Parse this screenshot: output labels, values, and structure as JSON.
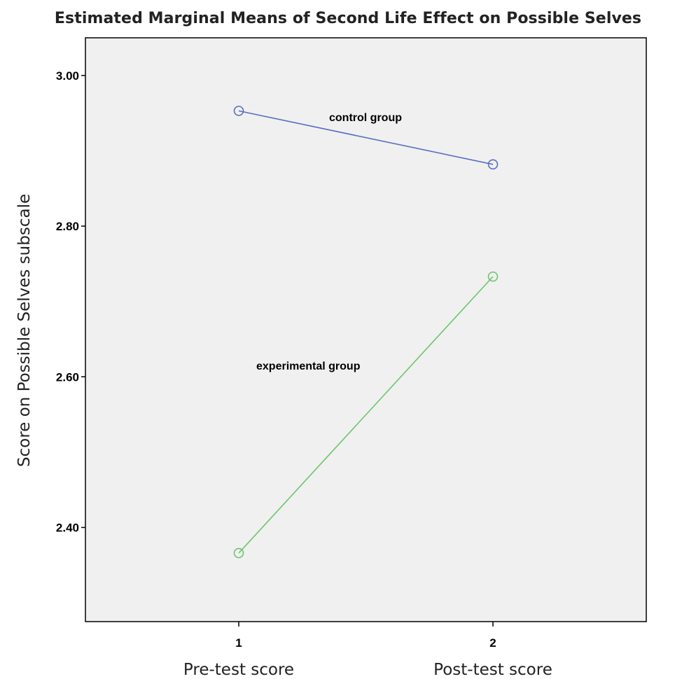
{
  "chart_data": {
    "type": "line",
    "title": "Estimated Marginal Means of Second Life Effect on Possible Selves",
    "xlabel": "",
    "ylabel": "Score on Possible Selves subscale",
    "categories": [
      "1",
      "2"
    ],
    "category_labels": [
      "Pre-test score",
      "Post-test score"
    ],
    "ylim": [
      2.275,
      3.05
    ],
    "yticks": [
      "2.40",
      "2.60",
      "2.80",
      "3.00"
    ],
    "ytick_values": [
      2.4,
      2.6,
      2.8,
      3.0
    ],
    "grid": false,
    "legend": "none",
    "series": [
      {
        "name": "control group",
        "values": [
          2.953,
          2.882
        ],
        "color": "#5a6ec4"
      },
      {
        "name": "experimental group",
        "values": [
          2.366,
          2.733
        ],
        "color": "#6cc56c"
      }
    ]
  }
}
